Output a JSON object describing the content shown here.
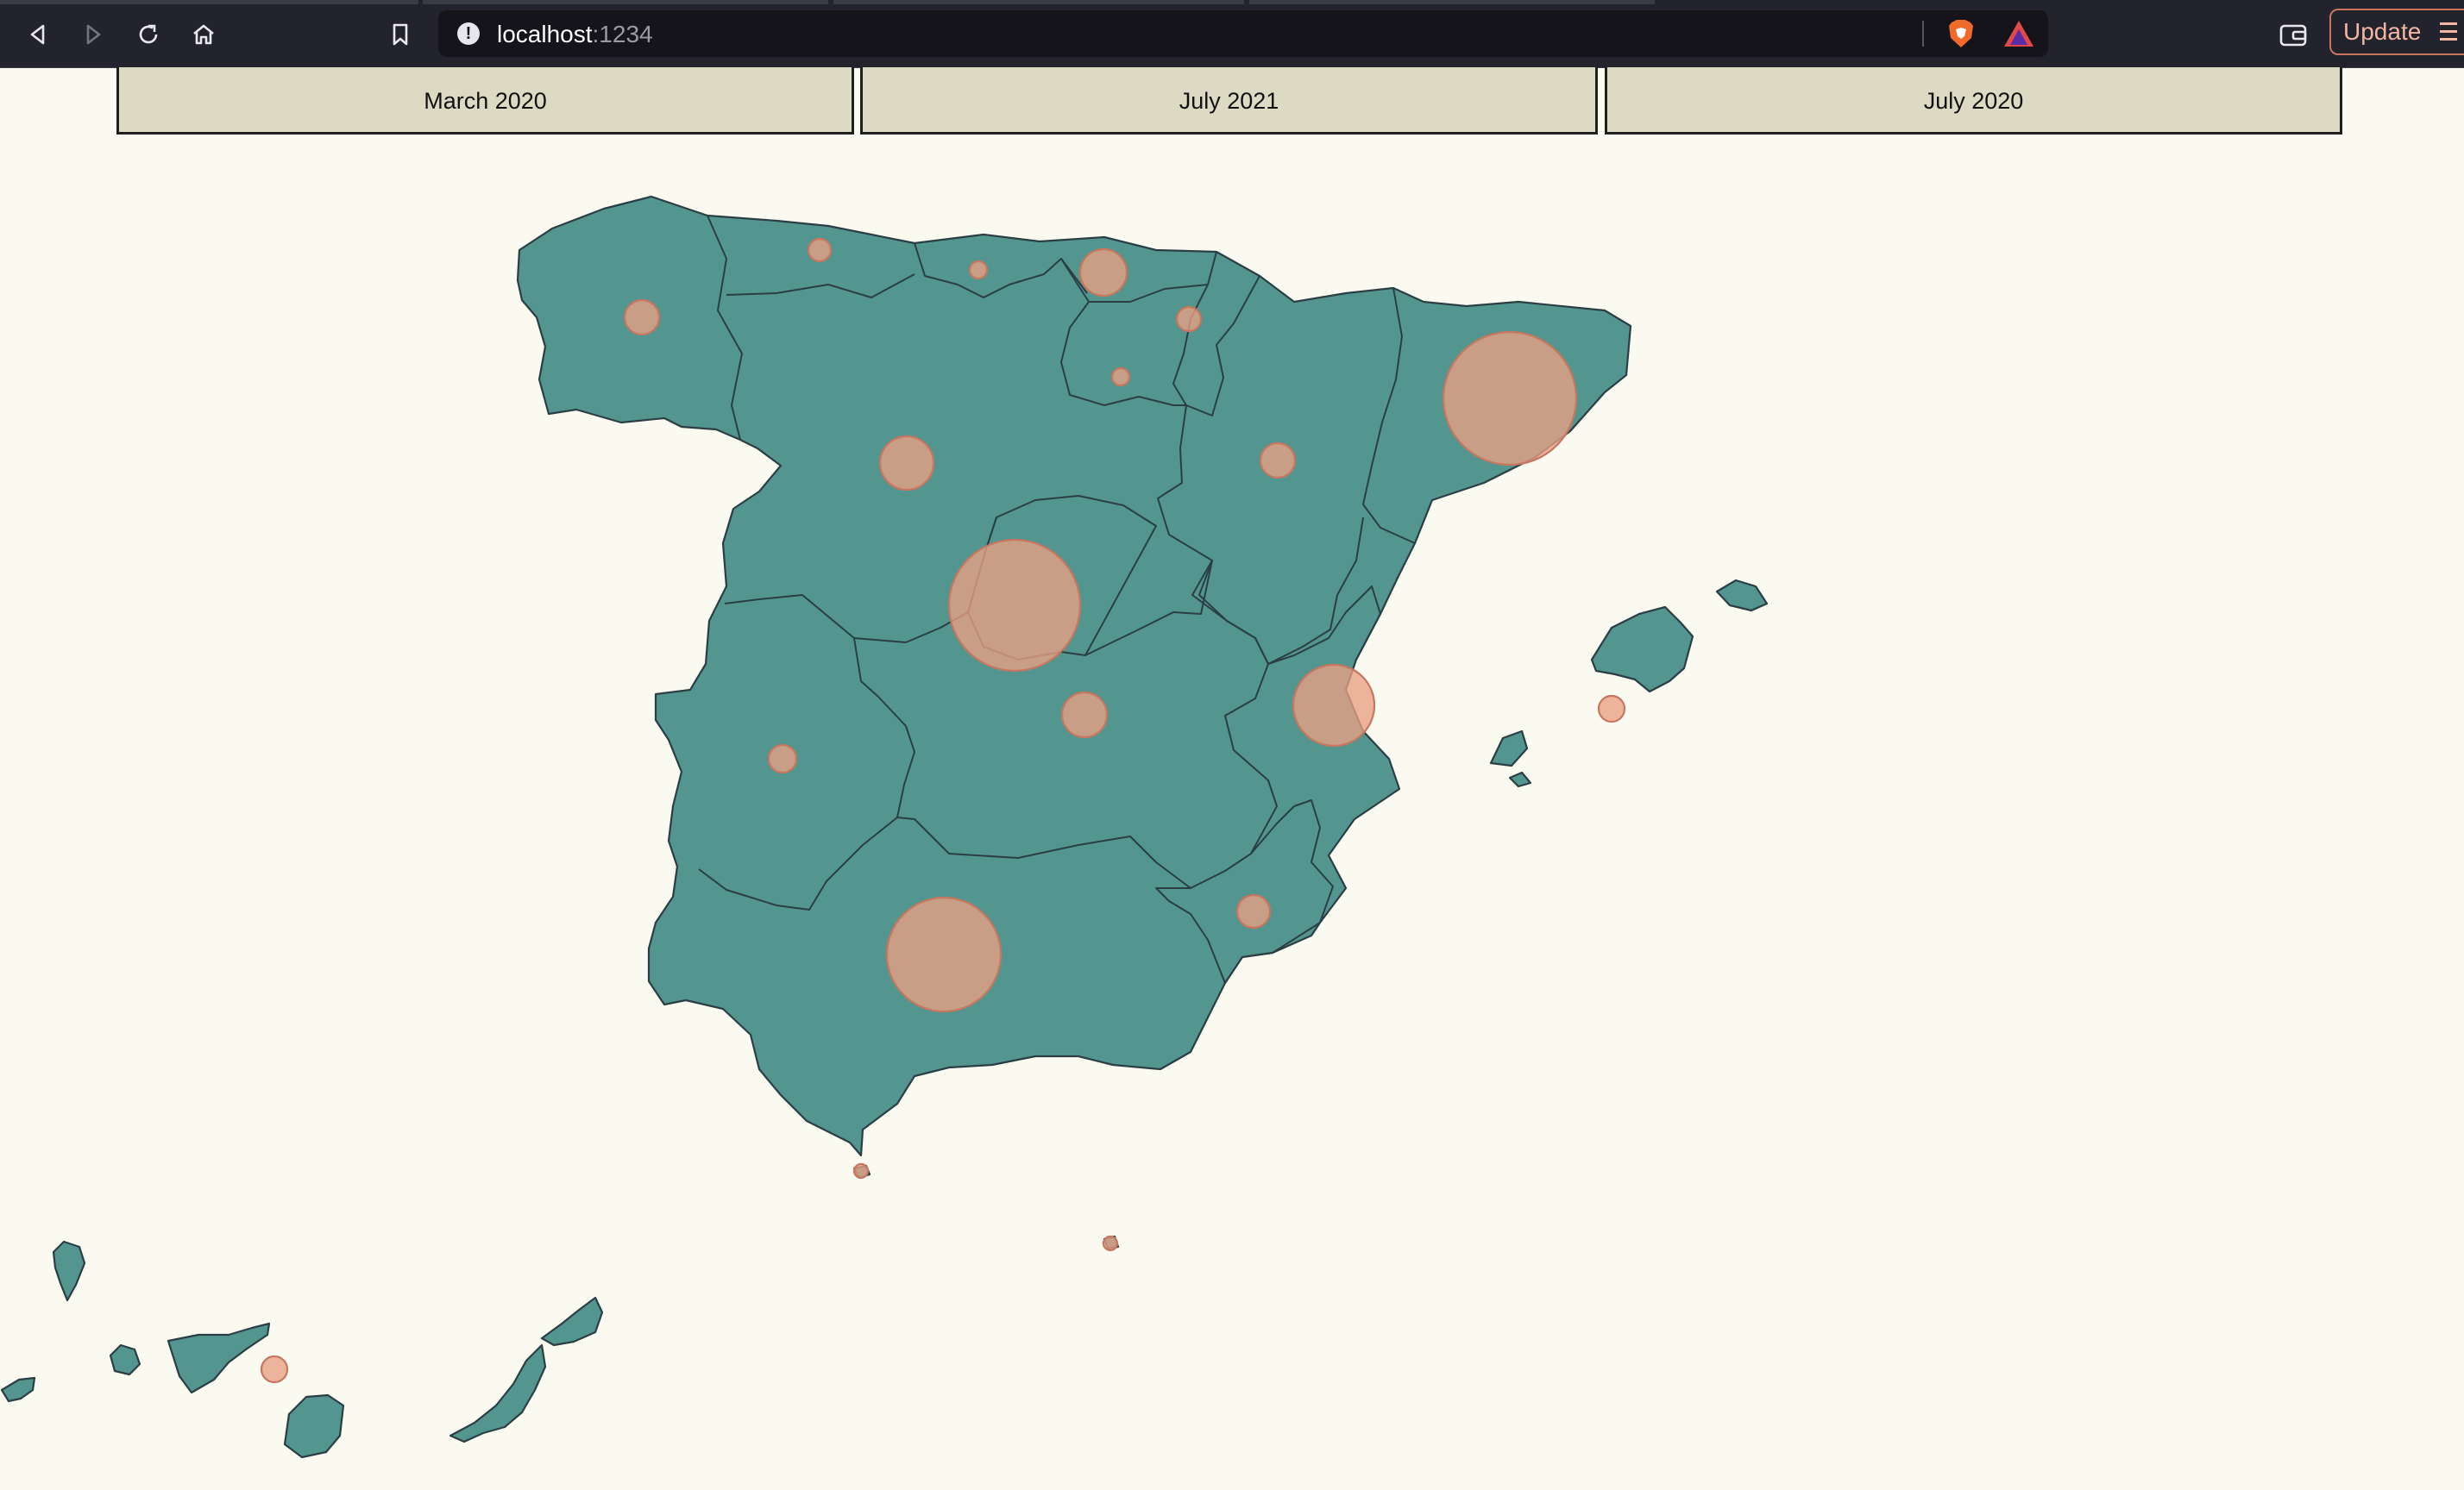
{
  "browser": {
    "url_host": "localhost",
    "url_port": ":1234",
    "update_label": "Update",
    "icons": [
      "back-icon",
      "forward-icon",
      "reload-icon",
      "home-icon",
      "bookmark-icon",
      "info-icon",
      "brave-shield-icon",
      "brave-rewards-icon",
      "wallet-icon",
      "menu-icon"
    ]
  },
  "date_buttons": [
    {
      "label": "March 2020"
    },
    {
      "label": "July 2021"
    },
    {
      "label": "July 2020"
    }
  ],
  "map": {
    "land_color": "#53968f",
    "border_color": "#2b3e44",
    "bubble_color": "#e9a084",
    "bubble_stroke": "#c8765d",
    "background": "#fbfaf1"
  }
}
